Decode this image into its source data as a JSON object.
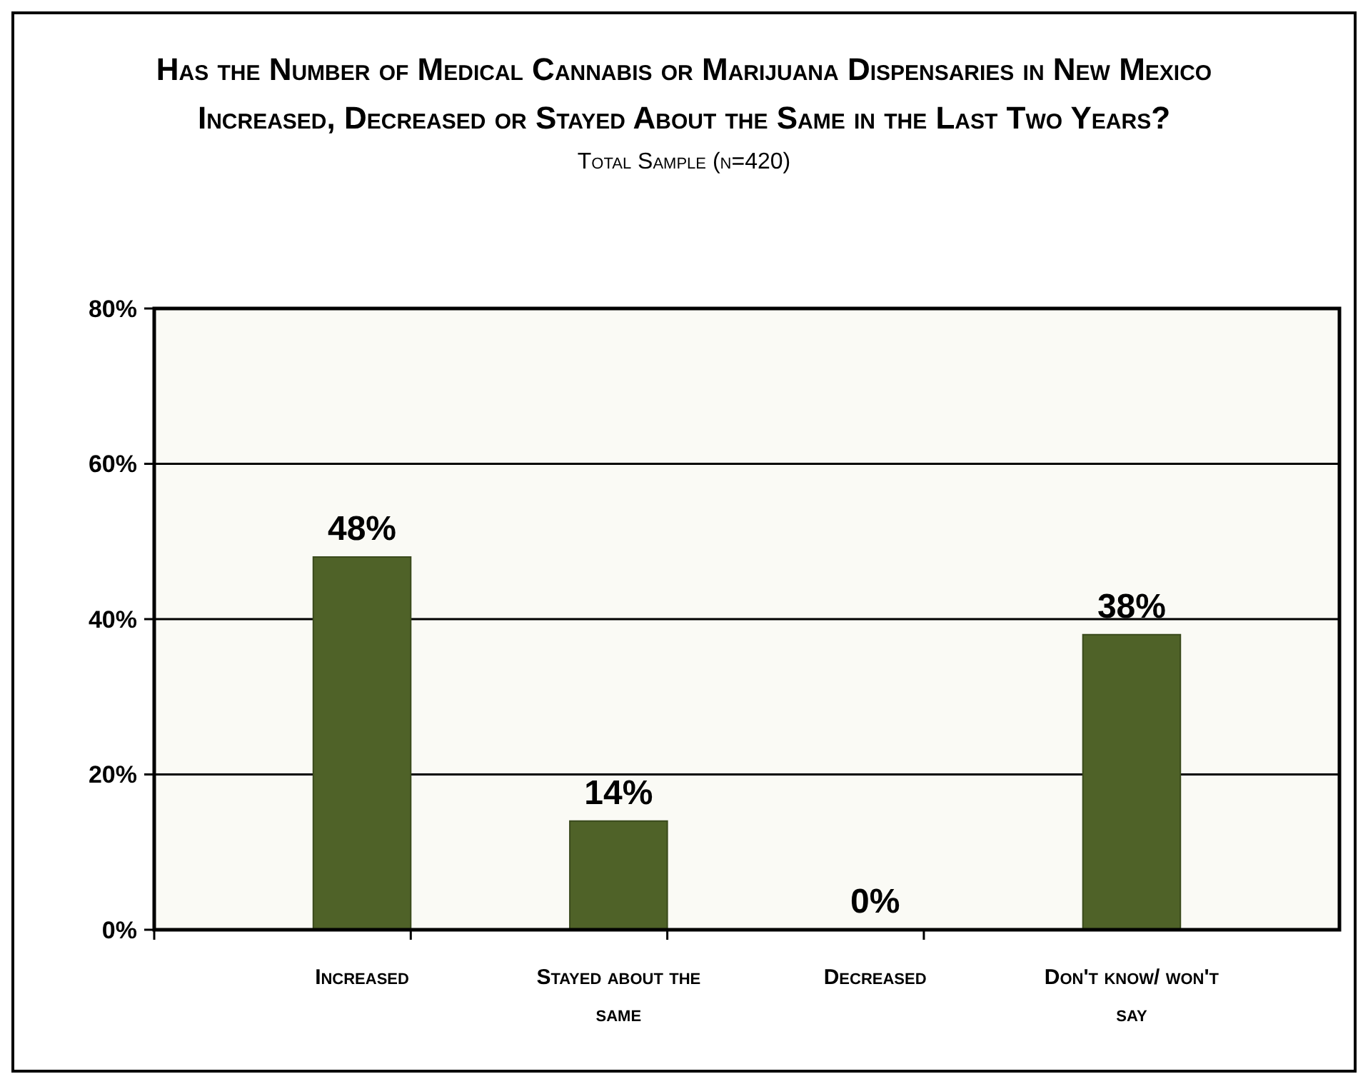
{
  "chart_data": {
    "type": "bar",
    "title": "Has the Number of Medical Cannabis or Marijuana Dispensaries in New Mexico Increased, Decreased or Stayed About the Same in the Last Two Years?",
    "subtitle": "Total Sample (n=420)",
    "categories": [
      "Increased",
      "Stayed about the same",
      "Decreased",
      "Don't know/ won't say"
    ],
    "values": [
      48,
      14,
      0,
      38
    ],
    "color": "#4f6228",
    "ylim": [
      0,
      80
    ],
    "yticks": [
      {
        "value": 0,
        "label": "0%"
      },
      {
        "value": 20,
        "label": "20%"
      },
      {
        "value": 40,
        "label": "40%"
      },
      {
        "value": 60,
        "label": "60%"
      },
      {
        "value": 80,
        "label": "80%"
      }
    ],
    "value_labels": [
      "48%",
      "14%",
      "0%",
      "38%"
    ],
    "grid": "y"
  }
}
